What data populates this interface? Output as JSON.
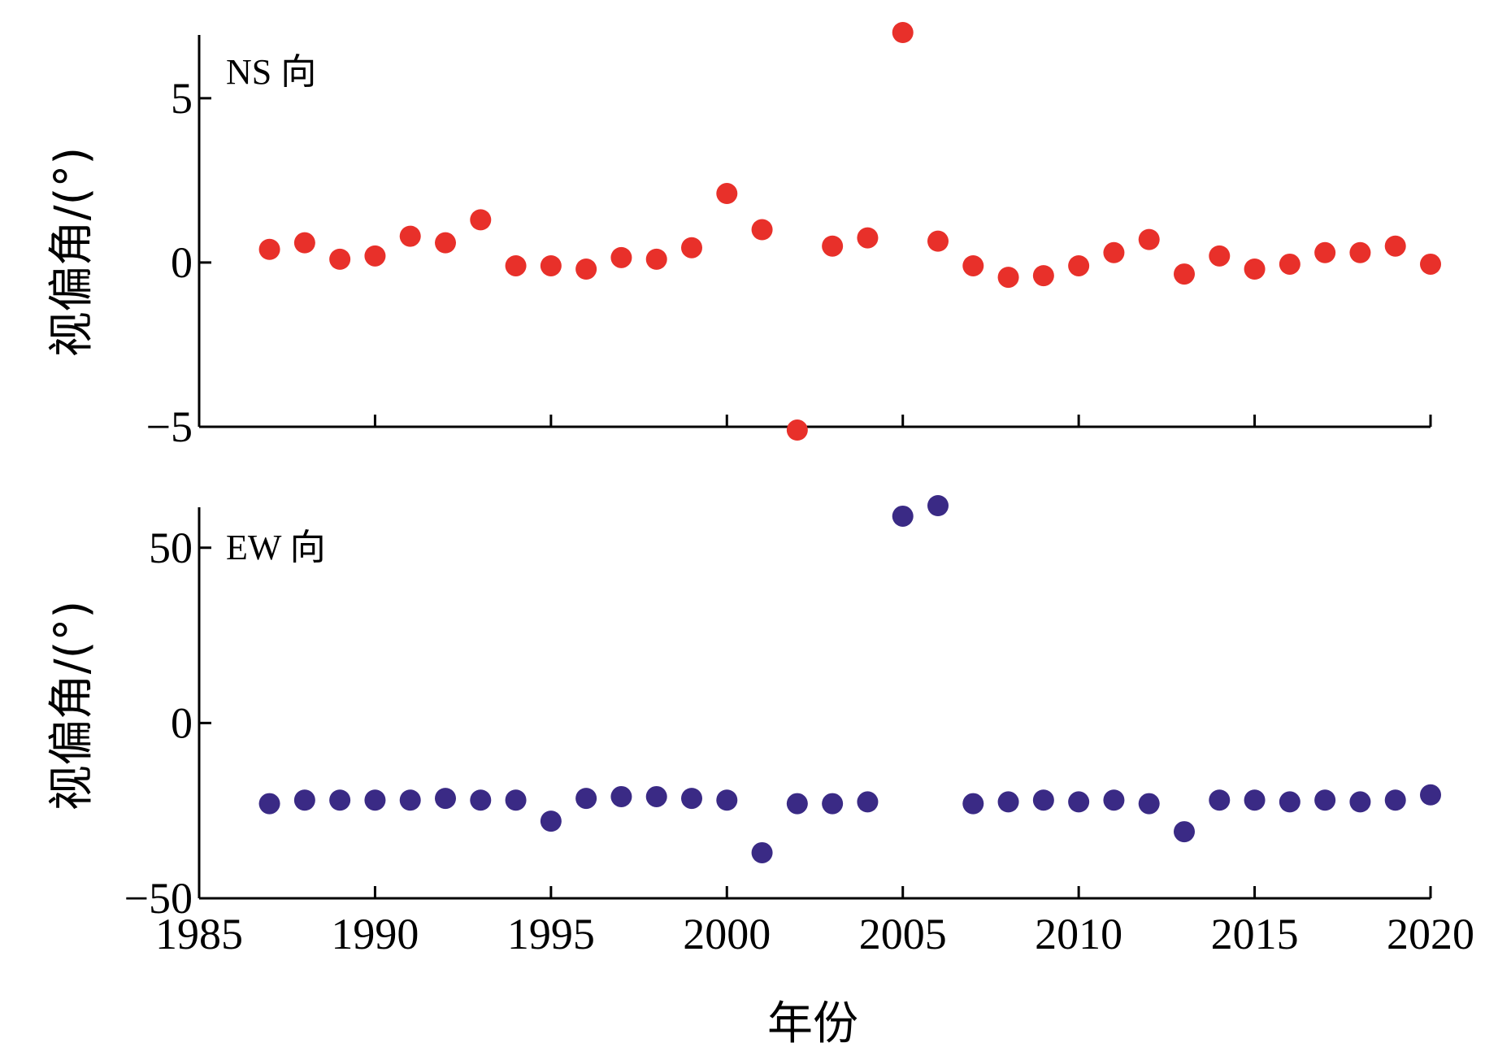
{
  "chart_data": [
    {
      "type": "scatter",
      "panel_label": "NS 向",
      "ylabel": "视偏角/(°)",
      "xlabel": "",
      "xlim": [
        1985,
        2020
      ],
      "ylim": [
        -5,
        7
      ],
      "yticks": [
        -5,
        0,
        5
      ],
      "ytick_labels": [
        "−5",
        "0",
        "5"
      ],
      "color": "#e8302a",
      "series": [
        {
          "name": "NS",
          "x": [
            1987,
            1988,
            1989,
            1990,
            1991,
            1992,
            1993,
            1994,
            1995,
            1996,
            1997,
            1998,
            1999,
            2000,
            2001,
            2002,
            2003,
            2004,
            2005,
            2006,
            2007,
            2008,
            2009,
            2010,
            2011,
            2012,
            2013,
            2014,
            2015,
            2016,
            2017,
            2018,
            2019,
            2020
          ],
          "values": [
            0.4,
            0.6,
            0.1,
            0.2,
            0.8,
            0.6,
            1.3,
            -0.1,
            -0.1,
            -0.2,
            0.15,
            0.1,
            0.45,
            2.1,
            1.0,
            -5.1,
            0.5,
            0.75,
            7.0,
            0.65,
            -0.1,
            -0.45,
            -0.4,
            -0.1,
            0.3,
            0.7,
            -0.35,
            0.2,
            -0.2,
            -0.05,
            0.3,
            0.3,
            0.5,
            -0.05
          ]
        }
      ]
    },
    {
      "type": "scatter",
      "panel_label": "EW 向",
      "ylabel": "视偏角/(°)",
      "xlabel": "年份",
      "xlim": [
        1985,
        2020
      ],
      "ylim": [
        -50,
        62
      ],
      "yticks": [
        -50,
        0,
        50
      ],
      "ytick_labels": [
        "−50",
        "0",
        "50"
      ],
      "xticks": [
        1985,
        1990,
        1995,
        2000,
        2005,
        2010,
        2015,
        2020
      ],
      "xtick_labels": [
        "1985",
        "1990",
        "1995",
        "2000",
        "2005",
        "2010",
        "2015",
        "2020"
      ],
      "color": "#3a2a85",
      "series": [
        {
          "name": "EW",
          "x": [
            1987,
            1988,
            1989,
            1990,
            1991,
            1992,
            1993,
            1994,
            1995,
            1996,
            1997,
            1998,
            1999,
            2000,
            2001,
            2002,
            2003,
            2004,
            2005,
            2006,
            2007,
            2008,
            2009,
            2010,
            2011,
            2012,
            2013,
            2014,
            2015,
            2016,
            2017,
            2018,
            2019,
            2020
          ],
          "values": [
            -23,
            -22,
            -22,
            -22,
            -22,
            -21.5,
            -22,
            -22,
            -28,
            -21.5,
            -21,
            -21,
            -21.5,
            -22,
            -37,
            -23,
            -23,
            -22.5,
            59,
            62,
            -23,
            -22.5,
            -22,
            -22.5,
            -22,
            -23,
            -31,
            -22,
            -22,
            -22.5,
            -22,
            -22.5,
            -22,
            -20.5
          ]
        }
      ]
    }
  ]
}
